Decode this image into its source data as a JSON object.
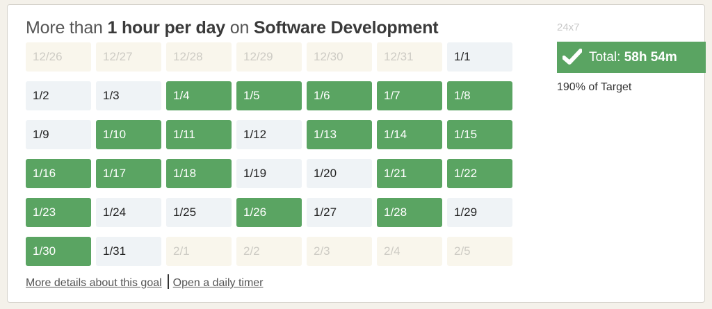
{
  "header": {
    "prefix": "More than",
    "amount": "1 hour per day",
    "on": "on",
    "category": "Software Development"
  },
  "calendar": {
    "rows": [
      [
        {
          "d": "12/26",
          "s": "out"
        },
        {
          "d": "12/27",
          "s": "out"
        },
        {
          "d": "12/28",
          "s": "out"
        },
        {
          "d": "12/29",
          "s": "out"
        },
        {
          "d": "12/30",
          "s": "out"
        },
        {
          "d": "12/31",
          "s": "out"
        },
        {
          "d": "1/1",
          "s": "miss"
        }
      ],
      [
        {
          "d": "1/2",
          "s": "miss"
        },
        {
          "d": "1/3",
          "s": "miss"
        },
        {
          "d": "1/4",
          "s": "hit"
        },
        {
          "d": "1/5",
          "s": "hit"
        },
        {
          "d": "1/6",
          "s": "hit"
        },
        {
          "d": "1/7",
          "s": "hit"
        },
        {
          "d": "1/8",
          "s": "hit"
        }
      ],
      [
        {
          "d": "1/9",
          "s": "miss"
        },
        {
          "d": "1/10",
          "s": "hit"
        },
        {
          "d": "1/11",
          "s": "hit"
        },
        {
          "d": "1/12",
          "s": "miss"
        },
        {
          "d": "1/13",
          "s": "hit"
        },
        {
          "d": "1/14",
          "s": "hit"
        },
        {
          "d": "1/15",
          "s": "hit"
        }
      ],
      [
        {
          "d": "1/16",
          "s": "hit"
        },
        {
          "d": "1/17",
          "s": "hit"
        },
        {
          "d": "1/18",
          "s": "hit"
        },
        {
          "d": "1/19",
          "s": "miss"
        },
        {
          "d": "1/20",
          "s": "miss"
        },
        {
          "d": "1/21",
          "s": "hit"
        },
        {
          "d": "1/22",
          "s": "hit"
        }
      ],
      [
        {
          "d": "1/23",
          "s": "hit"
        },
        {
          "d": "1/24",
          "s": "miss"
        },
        {
          "d": "1/25",
          "s": "miss"
        },
        {
          "d": "1/26",
          "s": "hit"
        },
        {
          "d": "1/27",
          "s": "miss"
        },
        {
          "d": "1/28",
          "s": "hit"
        },
        {
          "d": "1/29",
          "s": "miss"
        }
      ],
      [
        {
          "d": "1/30",
          "s": "hit"
        },
        {
          "d": "1/31",
          "s": "miss"
        },
        {
          "d": "2/1",
          "s": "out"
        },
        {
          "d": "2/2",
          "s": "out"
        },
        {
          "d": "2/3",
          "s": "out"
        },
        {
          "d": "2/4",
          "s": "out"
        },
        {
          "d": "2/5",
          "s": "out"
        }
      ]
    ]
  },
  "links": {
    "details": "More details about this goal",
    "timer": "Open a daily timer"
  },
  "sidebar": {
    "mode": "24x7",
    "total_label": "Total:",
    "total_value": "58h 54m",
    "target": "190% of Target"
  },
  "colors": {
    "hit": "#5aa462",
    "miss": "#eff3f6",
    "out": "#f9f6ec"
  },
  "icons": {
    "total": "check-icon"
  }
}
